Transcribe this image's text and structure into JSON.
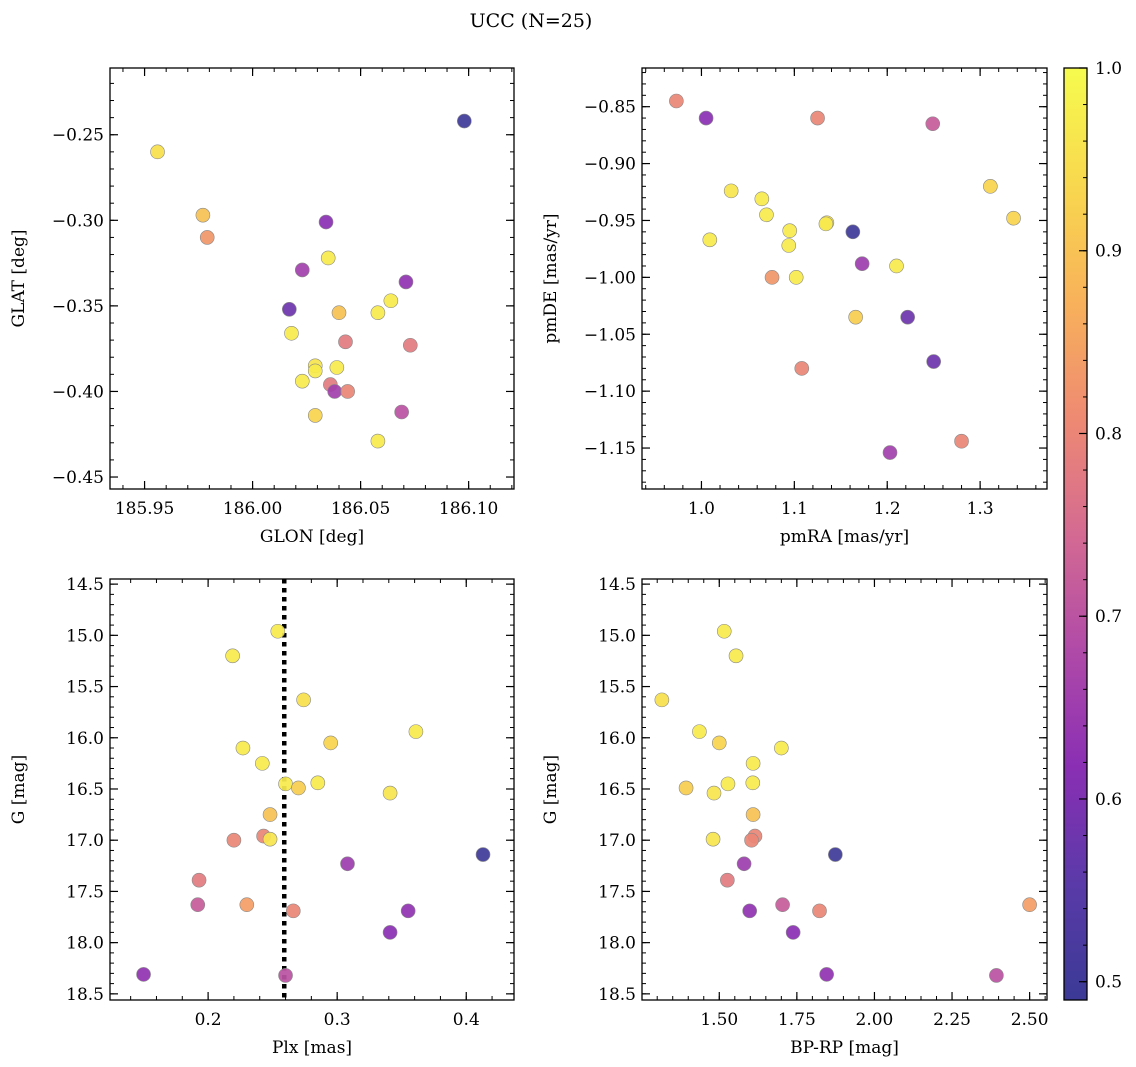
{
  "figure": {
    "title": "UCC (N=25)"
  },
  "colormap": {
    "name": "plasma",
    "stops": [
      "#3b3a96",
      "#5a3aa8",
      "#8a2fb4",
      "#b04aa8",
      "#d46a92",
      "#ee8a72",
      "#f8b25a",
      "#f8d84e",
      "#f6fb4e"
    ],
    "range": [
      0.49,
      1.0
    ],
    "ticks": [
      0.5,
      0.6,
      0.7,
      0.8,
      0.9,
      1.0
    ],
    "tick_labels": [
      "0.5",
      "0.6",
      "0.7",
      "0.8",
      "0.9",
      "1.0"
    ]
  },
  "chart_data": [
    {
      "type": "scatter",
      "title": "",
      "xlabel": "GLON [deg]",
      "ylabel": "GLAT [deg]",
      "xlim": [
        185.934,
        186.121
      ],
      "ylim": [
        -0.457,
        -0.211
      ],
      "xticks": [
        185.95,
        186.0,
        186.05,
        186.1
      ],
      "xtick_labels": [
        "185.95",
        "186.00",
        "186.05",
        "186.10"
      ],
      "yticks": [
        -0.25,
        -0.3,
        -0.35,
        -0.4,
        -0.45
      ],
      "ytick_labels": [
        "−0.25",
        "−0.30",
        "−0.35",
        "−0.40",
        "−0.45"
      ],
      "grid": false,
      "points": [
        {
          "x": 186.098,
          "y": -0.242,
          "c": 0.5
        },
        {
          "x": 185.956,
          "y": -0.26,
          "c": 0.95
        },
        {
          "x": 185.977,
          "y": -0.297,
          "c": 0.9
        },
        {
          "x": 185.979,
          "y": -0.31,
          "c": 0.83
        },
        {
          "x": 186.034,
          "y": -0.301,
          "c": 0.62
        },
        {
          "x": 186.035,
          "y": -0.322,
          "c": 0.97
        },
        {
          "x": 186.023,
          "y": -0.329,
          "c": 0.66
        },
        {
          "x": 186.071,
          "y": -0.336,
          "c": 0.63
        },
        {
          "x": 186.064,
          "y": -0.347,
          "c": 0.97
        },
        {
          "x": 186.017,
          "y": -0.352,
          "c": 0.58
        },
        {
          "x": 186.04,
          "y": -0.354,
          "c": 0.9
        },
        {
          "x": 186.058,
          "y": -0.354,
          "c": 0.97
        },
        {
          "x": 186.018,
          "y": -0.366,
          "c": 0.97
        },
        {
          "x": 186.043,
          "y": -0.371,
          "c": 0.78
        },
        {
          "x": 186.073,
          "y": -0.373,
          "c": 0.78
        },
        {
          "x": 186.029,
          "y": -0.385,
          "c": 0.96
        },
        {
          "x": 186.039,
          "y": -0.386,
          "c": 0.97
        },
        {
          "x": 186.029,
          "y": -0.388,
          "c": 0.97
        },
        {
          "x": 186.023,
          "y": -0.394,
          "c": 0.97
        },
        {
          "x": 186.036,
          "y": -0.396,
          "c": 0.78
        },
        {
          "x": 186.038,
          "y": -0.4,
          "c": 0.66
        },
        {
          "x": 186.044,
          "y": -0.4,
          "c": 0.8
        },
        {
          "x": 186.069,
          "y": -0.412,
          "c": 0.7
        },
        {
          "x": 186.029,
          "y": -0.414,
          "c": 0.93
        },
        {
          "x": 186.058,
          "y": -0.429,
          "c": 0.97
        }
      ]
    },
    {
      "type": "scatter",
      "title": "",
      "xlabel": "pmRA [mas/yr]",
      "ylabel": "pmDE [mas/yr]",
      "xlim": [
        0.936,
        1.372
      ],
      "ylim": [
        -1.186,
        -0.816
      ],
      "xticks": [
        1.0,
        1.1,
        1.2,
        1.3
      ],
      "xtick_labels": [
        "1.0",
        "1.1",
        "1.2",
        "1.3"
      ],
      "yticks": [
        -0.85,
        -0.9,
        -0.95,
        -1.0,
        -1.05,
        -1.1,
        -1.15
      ],
      "ytick_labels": [
        "−0.85",
        "−0.90",
        "−0.95",
        "−1.00",
        "−1.05",
        "−1.10",
        "−1.15"
      ],
      "grid": false,
      "points": [
        {
          "x": 0.973,
          "y": -0.845,
          "c": 0.8
        },
        {
          "x": 1.005,
          "y": -0.86,
          "c": 0.62
        },
        {
          "x": 1.125,
          "y": -0.86,
          "c": 0.8
        },
        {
          "x": 1.249,
          "y": -0.865,
          "c": 0.72
        },
        {
          "x": 1.311,
          "y": -0.92,
          "c": 0.93
        },
        {
          "x": 1.032,
          "y": -0.924,
          "c": 0.96
        },
        {
          "x": 1.336,
          "y": -0.948,
          "c": 0.93
        },
        {
          "x": 1.065,
          "y": -0.931,
          "c": 0.97
        },
        {
          "x": 1.07,
          "y": -0.945,
          "c": 0.97
        },
        {
          "x": 1.135,
          "y": -0.952,
          "c": 0.95
        },
        {
          "x": 1.134,
          "y": -0.953,
          "c": 0.97
        },
        {
          "x": 1.095,
          "y": -0.959,
          "c": 0.97
        },
        {
          "x": 1.163,
          "y": -0.96,
          "c": 0.5
        },
        {
          "x": 1.009,
          "y": -0.967,
          "c": 0.97
        },
        {
          "x": 1.094,
          "y": -0.972,
          "c": 0.97
        },
        {
          "x": 1.173,
          "y": -0.988,
          "c": 0.65
        },
        {
          "x": 1.21,
          "y": -0.99,
          "c": 0.97
        },
        {
          "x": 1.076,
          "y": -1.0,
          "c": 0.83
        },
        {
          "x": 1.102,
          "y": -1.0,
          "c": 0.97
        },
        {
          "x": 1.166,
          "y": -1.035,
          "c": 0.92
        },
        {
          "x": 1.222,
          "y": -1.035,
          "c": 0.58
        },
        {
          "x": 1.25,
          "y": -1.074,
          "c": 0.58
        },
        {
          "x": 1.108,
          "y": -1.08,
          "c": 0.8
        },
        {
          "x": 1.28,
          "y": -1.144,
          "c": 0.8
        },
        {
          "x": 1.203,
          "y": -1.154,
          "c": 0.66
        }
      ]
    },
    {
      "type": "scatter",
      "title": "",
      "xlabel": "Plx [mas]",
      "ylabel": "G [mag]",
      "xlim": [
        0.124,
        0.437
      ],
      "ylim": [
        18.56,
        14.45
      ],
      "xticks": [
        0.2,
        0.3,
        0.4
      ],
      "xtick_labels": [
        "0.2",
        "0.3",
        "0.4"
      ],
      "yticks": [
        14.5,
        15.0,
        15.5,
        16.0,
        16.5,
        17.0,
        17.5,
        18.0,
        18.5
      ],
      "ytick_labels": [
        "14.5",
        "15.0",
        "15.5",
        "16.0",
        "16.5",
        "17.0",
        "17.5",
        "18.0",
        "18.5"
      ],
      "grid": false,
      "vline": {
        "x": 0.259,
        "style": "dotted"
      },
      "points": [
        {
          "x": 0.254,
          "y": 14.96,
          "c": 0.97
        },
        {
          "x": 0.219,
          "y": 15.2,
          "c": 0.97
        },
        {
          "x": 0.274,
          "y": 15.63,
          "c": 0.95
        },
        {
          "x": 0.361,
          "y": 15.94,
          "c": 0.97
        },
        {
          "x": 0.295,
          "y": 16.05,
          "c": 0.93
        },
        {
          "x": 0.227,
          "y": 16.1,
          "c": 0.97
        },
        {
          "x": 0.242,
          "y": 16.25,
          "c": 0.97
        },
        {
          "x": 0.285,
          "y": 16.44,
          "c": 0.97
        },
        {
          "x": 0.26,
          "y": 16.45,
          "c": 0.97
        },
        {
          "x": 0.27,
          "y": 16.49,
          "c": 0.92
        },
        {
          "x": 0.341,
          "y": 16.54,
          "c": 0.96
        },
        {
          "x": 0.248,
          "y": 16.75,
          "c": 0.9
        },
        {
          "x": 0.22,
          "y": 17.0,
          "c": 0.8
        },
        {
          "x": 0.243,
          "y": 16.96,
          "c": 0.8
        },
        {
          "x": 0.248,
          "y": 16.99,
          "c": 0.96
        },
        {
          "x": 0.413,
          "y": 17.14,
          "c": 0.5
        },
        {
          "x": 0.308,
          "y": 17.23,
          "c": 0.65
        },
        {
          "x": 0.193,
          "y": 17.39,
          "c": 0.78
        },
        {
          "x": 0.192,
          "y": 17.63,
          "c": 0.72
        },
        {
          "x": 0.23,
          "y": 17.63,
          "c": 0.84
        },
        {
          "x": 0.266,
          "y": 17.69,
          "c": 0.8
        },
        {
          "x": 0.355,
          "y": 17.69,
          "c": 0.63
        },
        {
          "x": 0.341,
          "y": 17.9,
          "c": 0.62
        },
        {
          "x": 0.15,
          "y": 18.31,
          "c": 0.63
        },
        {
          "x": 0.26,
          "y": 18.32,
          "c": 0.7
        }
      ]
    },
    {
      "type": "scatter",
      "title": "",
      "xlabel": "BP-RP [mag]",
      "ylabel": "G [mag]",
      "xlim": [
        1.251,
        2.556
      ],
      "ylim": [
        18.56,
        14.45
      ],
      "xticks": [
        1.5,
        1.75,
        2.0,
        2.25,
        2.5
      ],
      "xtick_labels": [
        "1.50",
        "1.75",
        "2.00",
        "2.25",
        "2.50"
      ],
      "yticks": [
        14.5,
        15.0,
        15.5,
        16.0,
        16.5,
        17.0,
        17.5,
        18.0,
        18.5
      ],
      "ytick_labels": [
        "14.5",
        "15.0",
        "15.5",
        "16.0",
        "16.5",
        "17.0",
        "17.5",
        "18.0",
        "18.5"
      ],
      "grid": false,
      "points": [
        {
          "x": 1.516,
          "y": 14.96,
          "c": 0.97
        },
        {
          "x": 1.554,
          "y": 15.2,
          "c": 0.97
        },
        {
          "x": 1.315,
          "y": 15.63,
          "c": 0.95
        },
        {
          "x": 1.436,
          "y": 15.94,
          "c": 0.97
        },
        {
          "x": 1.5,
          "y": 16.05,
          "c": 0.93
        },
        {
          "x": 1.7,
          "y": 16.1,
          "c": 0.97
        },
        {
          "x": 1.609,
          "y": 16.25,
          "c": 0.97
        },
        {
          "x": 1.608,
          "y": 16.44,
          "c": 0.97
        },
        {
          "x": 1.528,
          "y": 16.45,
          "c": 0.97
        },
        {
          "x": 1.393,
          "y": 16.49,
          "c": 0.92
        },
        {
          "x": 1.483,
          "y": 16.54,
          "c": 0.96
        },
        {
          "x": 1.609,
          "y": 16.75,
          "c": 0.9
        },
        {
          "x": 1.615,
          "y": 16.96,
          "c": 0.8
        },
        {
          "x": 1.604,
          "y": 17.0,
          "c": 0.8
        },
        {
          "x": 1.48,
          "y": 16.99,
          "c": 0.96
        },
        {
          "x": 1.874,
          "y": 17.14,
          "c": 0.5
        },
        {
          "x": 1.58,
          "y": 17.23,
          "c": 0.65
        },
        {
          "x": 1.526,
          "y": 17.39,
          "c": 0.78
        },
        {
          "x": 1.704,
          "y": 17.63,
          "c": 0.72
        },
        {
          "x": 2.5,
          "y": 17.63,
          "c": 0.84
        },
        {
          "x": 1.823,
          "y": 17.69,
          "c": 0.8
        },
        {
          "x": 1.598,
          "y": 17.69,
          "c": 0.63
        },
        {
          "x": 1.738,
          "y": 17.9,
          "c": 0.62
        },
        {
          "x": 1.846,
          "y": 18.31,
          "c": 0.63
        },
        {
          "x": 2.393,
          "y": 18.32,
          "c": 0.7
        }
      ]
    }
  ]
}
